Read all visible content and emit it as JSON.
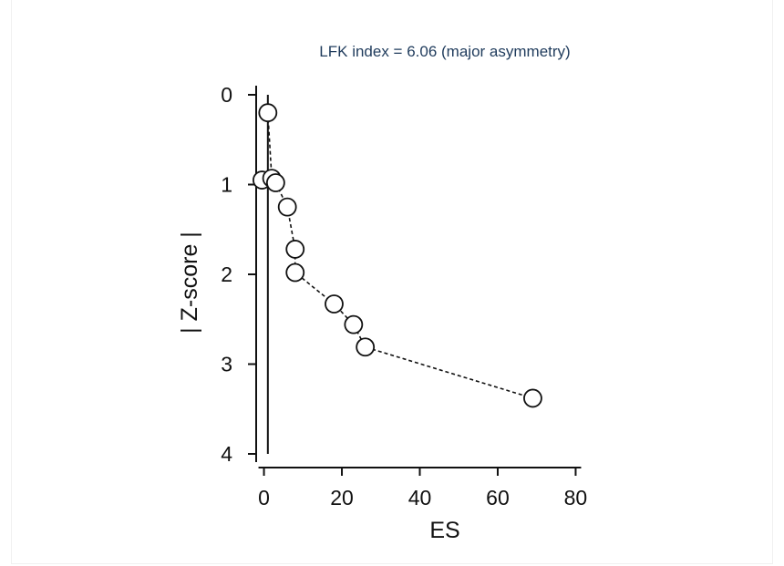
{
  "chart_data": {
    "type": "scatter",
    "title": "LFK index = 6.06 (major asymmetry)",
    "xlabel": "ES",
    "ylabel": "| Z-score |",
    "xlim": [
      -2,
      82
    ],
    "ylim": [
      0,
      4
    ],
    "y_inverted": true,
    "x_ticks": [
      0,
      20,
      40,
      60,
      80
    ],
    "y_ticks": [
      0,
      1,
      2,
      3,
      4
    ],
    "x_tick_labels": [
      "0",
      "20",
      "40",
      "60",
      "80"
    ],
    "y_tick_labels": [
      "0",
      "1",
      "2",
      "3",
      "4"
    ],
    "reference_line_x": 1,
    "grid": false,
    "connected_line_style": "dashed",
    "points": [
      {
        "x": 1,
        "y": 0.2
      },
      {
        "x": -0.5,
        "y": 0.95
      },
      {
        "x": 2,
        "y": 0.93
      },
      {
        "x": 3,
        "y": 0.98
      },
      {
        "x": 6,
        "y": 1.25
      },
      {
        "x": 8,
        "y": 1.72
      },
      {
        "x": 8,
        "y": 1.98
      },
      {
        "x": 18,
        "y": 2.33
      },
      {
        "x": 23,
        "y": 2.56
      },
      {
        "x": 26,
        "y": 2.81
      },
      {
        "x": 69,
        "y": 3.38
      }
    ],
    "point_color": "#ffffff",
    "point_edge_color": "#111111"
  }
}
